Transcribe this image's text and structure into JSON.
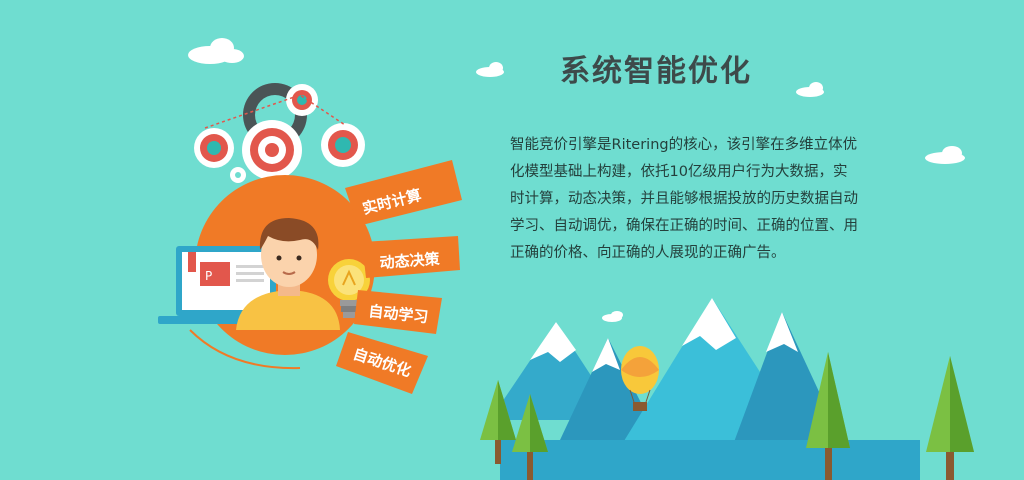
{
  "title": "系统智能优化",
  "description": "智能竞价引擎是Ritering的核心，该引擎在多维立体优化模型基础上构建，依托10亿级用户行为大数据，实时计算，动态决策，并且能够根据投放的历史数据自动学习、自动调优，确保在正确的时间、正确的位置、用正确的价格、向正确的人展现的正确广告。",
  "tags": [
    "实时计算",
    "动态决策",
    "自动学习",
    "自动优化"
  ],
  "illustration": {
    "icons": [
      "cloud-icon",
      "gear-icon",
      "person-icon",
      "laptop-icon",
      "lightbulb-icon",
      "mountain-icon",
      "tree-icon",
      "hot-air-balloon-icon"
    ]
  },
  "colors": {
    "background": "#6fddd0",
    "orange": "#f07a26",
    "title": "#3d4a4a",
    "text": "#24403c"
  }
}
